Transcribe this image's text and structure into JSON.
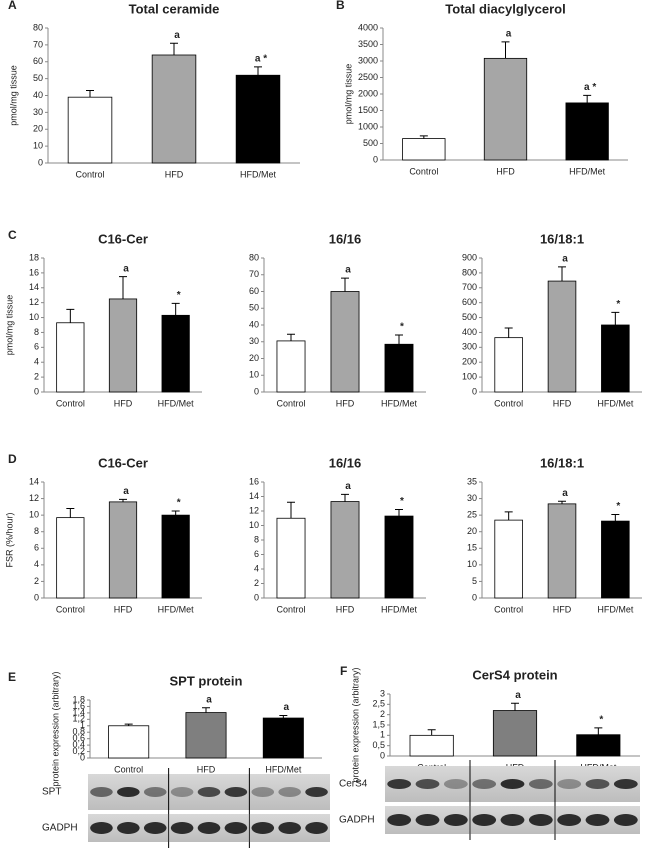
{
  "chart_data": [
    {
      "type": "bar",
      "panel": "A",
      "title": "Total ceramide",
      "ylabel": "pmol/mg tissue",
      "categories": [
        "Control",
        "HFD",
        "HFD/Met"
      ],
      "values": [
        39,
        64,
        52
      ],
      "errors": [
        4,
        7,
        5
      ],
      "colors": [
        "#ffffff",
        "#a6a6a6",
        "#000000"
      ],
      "annotations": [
        null,
        "a",
        "a *"
      ],
      "ylim": [
        0,
        80
      ],
      "yticks": [
        0,
        10,
        20,
        30,
        40,
        50,
        60,
        70,
        80
      ]
    },
    {
      "type": "bar",
      "panel": "B",
      "title": "Total diacylglycerol",
      "ylabel": "pmol/mg tissue",
      "categories": [
        "Control",
        "HFD",
        "HFD/Met"
      ],
      "values": [
        650,
        3080,
        1730
      ],
      "errors": [
        80,
        500,
        230
      ],
      "colors": [
        "#ffffff",
        "#a6a6a6",
        "#000000"
      ],
      "annotations": [
        null,
        "a",
        "a *"
      ],
      "ylim": [
        0,
        4000
      ],
      "yticks": [
        0,
        500,
        1000,
        1500,
        2000,
        2500,
        3000,
        3500,
        4000
      ]
    },
    {
      "type": "bar",
      "panel": "C",
      "title": "C16-Cer",
      "ylabel": "pmol/mg tissue",
      "categories": [
        "Control",
        "HFD",
        "HFD/Met"
      ],
      "values": [
        9.3,
        12.5,
        10.3
      ],
      "errors": [
        1.8,
        3,
        1.6
      ],
      "colors": [
        "#ffffff",
        "#a6a6a6",
        "#000000"
      ],
      "annotations": [
        null,
        "a",
        "*"
      ],
      "ylim": [
        0,
        18
      ],
      "yticks": [
        0,
        2,
        4,
        6,
        8,
        10,
        12,
        14,
        16,
        18
      ]
    },
    {
      "type": "bar",
      "title": "16/16",
      "categories": [
        "Control",
        "HFD",
        "HFD/Met"
      ],
      "values": [
        30.5,
        60,
        28.5
      ],
      "errors": [
        4,
        8,
        5.5
      ],
      "colors": [
        "#ffffff",
        "#a6a6a6",
        "#000000"
      ],
      "annotations": [
        null,
        "a",
        "*"
      ],
      "ylim": [
        0,
        80
      ],
      "yticks": [
        0,
        10,
        20,
        30,
        40,
        50,
        60,
        70,
        80
      ]
    },
    {
      "type": "bar",
      "title": "16/18:1",
      "categories": [
        "Control",
        "HFD",
        "HFD/Met"
      ],
      "values": [
        365,
        745,
        450
      ],
      "errors": [
        65,
        95,
        85
      ],
      "colors": [
        "#ffffff",
        "#a6a6a6",
        "#000000"
      ],
      "annotations": [
        null,
        "a",
        "*"
      ],
      "ylim": [
        0,
        900
      ],
      "yticks": [
        0,
        100,
        200,
        300,
        400,
        500,
        600,
        700,
        800,
        900
      ]
    },
    {
      "type": "bar",
      "panel": "D",
      "title": "C16-Cer",
      "ylabel": "FSR (%/hour)",
      "categories": [
        "Control",
        "HFD",
        "HFD/Met"
      ],
      "values": [
        9.7,
        11.6,
        10
      ],
      "errors": [
        1.1,
        0.3,
        0.5
      ],
      "colors": [
        "#ffffff",
        "#a6a6a6",
        "#000000"
      ],
      "annotations": [
        null,
        "a",
        "*"
      ],
      "ylim": [
        0,
        14
      ],
      "yticks": [
        0,
        2,
        4,
        6,
        8,
        10,
        12,
        14
      ]
    },
    {
      "type": "bar",
      "title": "16/16",
      "categories": [
        "Control",
        "HFD",
        "HFD/Met"
      ],
      "values": [
        11,
        13.3,
        11.3
      ],
      "errors": [
        2.2,
        1,
        0.9
      ],
      "colors": [
        "#ffffff",
        "#a6a6a6",
        "#000000"
      ],
      "annotations": [
        null,
        "a",
        "*"
      ],
      "ylim": [
        0,
        16
      ],
      "yticks": [
        0,
        2,
        4,
        6,
        8,
        10,
        12,
        14,
        16
      ]
    },
    {
      "type": "bar",
      "title": "16/18:1",
      "categories": [
        "Control",
        "HFD",
        "HFD/Met"
      ],
      "values": [
        23.5,
        28.4,
        23.2
      ],
      "errors": [
        2.5,
        0.8,
        2
      ],
      "colors": [
        "#ffffff",
        "#a6a6a6",
        "#000000"
      ],
      "annotations": [
        null,
        "a",
        "*"
      ],
      "ylim": [
        0,
        35
      ],
      "yticks": [
        0,
        5,
        10,
        15,
        20,
        25,
        30,
        35
      ]
    },
    {
      "type": "bar",
      "panel": "E",
      "title": "SPT protein",
      "ylabel": "protein expression (arbitrary)",
      "categories": [
        "Control",
        "HFD",
        "HFD/Met"
      ],
      "values": [
        1,
        1.41,
        1.24
      ],
      "errors": [
        0.05,
        0.15,
        0.08
      ],
      "colors": [
        "#ffffff",
        "#7f7f7f",
        "#000000"
      ],
      "annotations": [
        null,
        "a",
        "a"
      ],
      "ylim": [
        0,
        1.8
      ],
      "yticks": [
        0,
        {
          "value": 0.2,
          "label": "0,2"
        },
        {
          "value": 0.4,
          "label": "0,4"
        },
        {
          "value": 0.6,
          "label": "0,6"
        },
        {
          "value": 0.8,
          "label": "0,8"
        },
        1,
        {
          "value": 1.2,
          "label": "1,2"
        },
        {
          "value": 1.4,
          "label": "1,4"
        },
        {
          "value": 1.6,
          "label": "1,6"
        },
        {
          "value": 1.8,
          "label": "1,8"
        }
      ]
    },
    {
      "type": "bar",
      "panel": "F",
      "title": "CerS4 protein",
      "ylabel": "protein expression (arbitrary)",
      "categories": [
        "Control",
        "HFD",
        "HFD/Met"
      ],
      "values": [
        1,
        2.2,
        1.03
      ],
      "errors": [
        0.27,
        0.35,
        0.33
      ],
      "colors": [
        "#ffffff",
        "#7f7f7f",
        "#000000"
      ],
      "annotations": [
        null,
        "a",
        "*"
      ],
      "ylim": [
        0,
        3
      ],
      "yticks": [
        0,
        {
          "value": 0.5,
          "label": "0,5"
        },
        1,
        {
          "value": 1.5,
          "label": "1,5"
        },
        2,
        {
          "value": 2.5,
          "label": "2,5"
        },
        3
      ]
    }
  ],
  "blots": [
    {
      "rows": [
        "SPT",
        "GADPH"
      ]
    },
    {
      "rows": [
        "CerS4",
        "GADPH"
      ]
    }
  ]
}
